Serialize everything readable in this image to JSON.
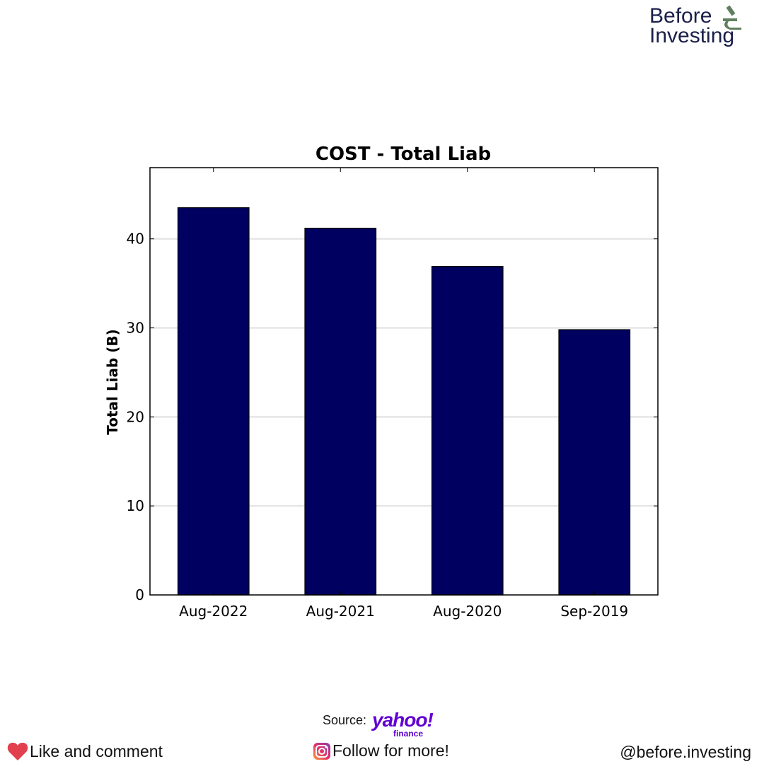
{
  "brand": {
    "logo_line1": "Before",
    "logo_line2": "Investing",
    "accent_color": "#5f7f5f",
    "text_color": "#1a1f4a"
  },
  "chart_data": {
    "type": "bar",
    "title": "COST - Total Liab",
    "xlabel": "",
    "ylabel": "Total Liab (B)",
    "categories": [
      "Aug-2022",
      "Aug-2021",
      "Aug-2020",
      "Sep-2019"
    ],
    "values": [
      43.5,
      41.2,
      36.9,
      29.8
    ],
    "ylim": [
      0,
      48
    ],
    "yticks": [
      0,
      10,
      20,
      30,
      40
    ],
    "grid": true,
    "bar_color": "#000060"
  },
  "footer": {
    "source_label": "Source:",
    "source_brand": "yahoo!",
    "source_brand_sub": "finance",
    "like_text": "Like and comment",
    "follow_text": "Follow for more!",
    "handle": "@before.investing"
  },
  "icons": {
    "heart": "heart-icon",
    "instagram": "instagram-icon",
    "microscope": "microscope-icon"
  }
}
